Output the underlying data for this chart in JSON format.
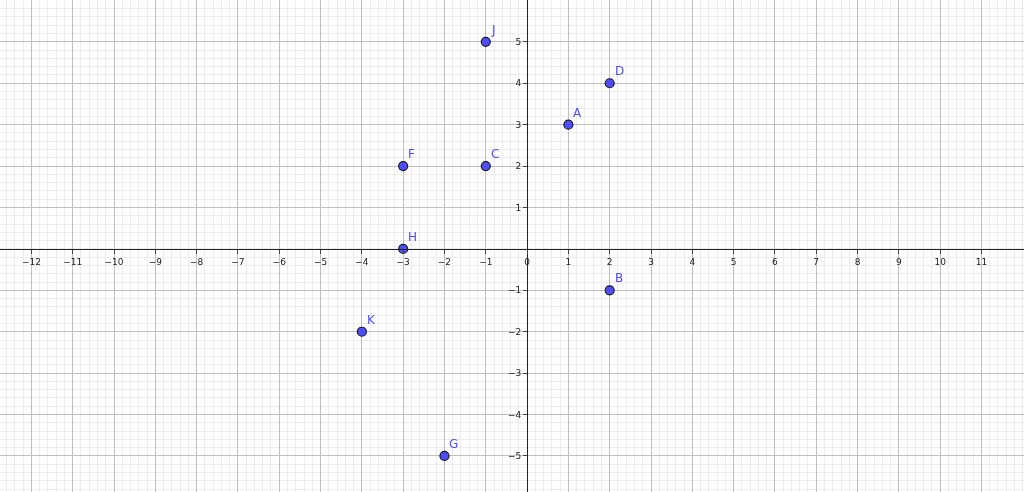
{
  "chart_data": {
    "type": "scatter",
    "x": [
      -1,
      2,
      1,
      -3,
      -1,
      -3,
      2,
      -4,
      -2
    ],
    "series": [
      {
        "color": "#4d4dff",
        "values": [
          5,
          4,
          3,
          2,
          2,
          0,
          -1,
          -2,
          -5
        ]
      }
    ],
    "annotations": [
      {
        "text": "J",
        "x": -1,
        "y": 5
      },
      {
        "text": "D",
        "x": 2,
        "y": 4
      },
      {
        "text": "A",
        "x": 1,
        "y": 3
      },
      {
        "text": "F",
        "x": -3,
        "y": 2
      },
      {
        "text": "C",
        "x": -1,
        "y": 2
      },
      {
        "text": "H",
        "x": -3,
        "y": 0
      },
      {
        "text": "B",
        "x": 2,
        "y": -1
      },
      {
        "text": "K",
        "x": -4,
        "y": -2
      },
      {
        "text": "G",
        "x": -2,
        "y": -5
      }
    ],
    "xlim": [
      -12.76,
      12.03
    ],
    "ylim": [
      -5.87,
      6.01
    ],
    "xticks": [
      -12,
      -11,
      -10,
      -9,
      -8,
      -7,
      -6,
      -5,
      -4,
      -3,
      -2,
      -1,
      0,
      1,
      2,
      3,
      4,
      5,
      6,
      7,
      8,
      9,
      10,
      11
    ],
    "yticks": [
      -5,
      -4,
      -3,
      -2,
      -1,
      1,
      2,
      3,
      4,
      5
    ],
    "grid": true,
    "marker": "circle",
    "legend": false
  }
}
